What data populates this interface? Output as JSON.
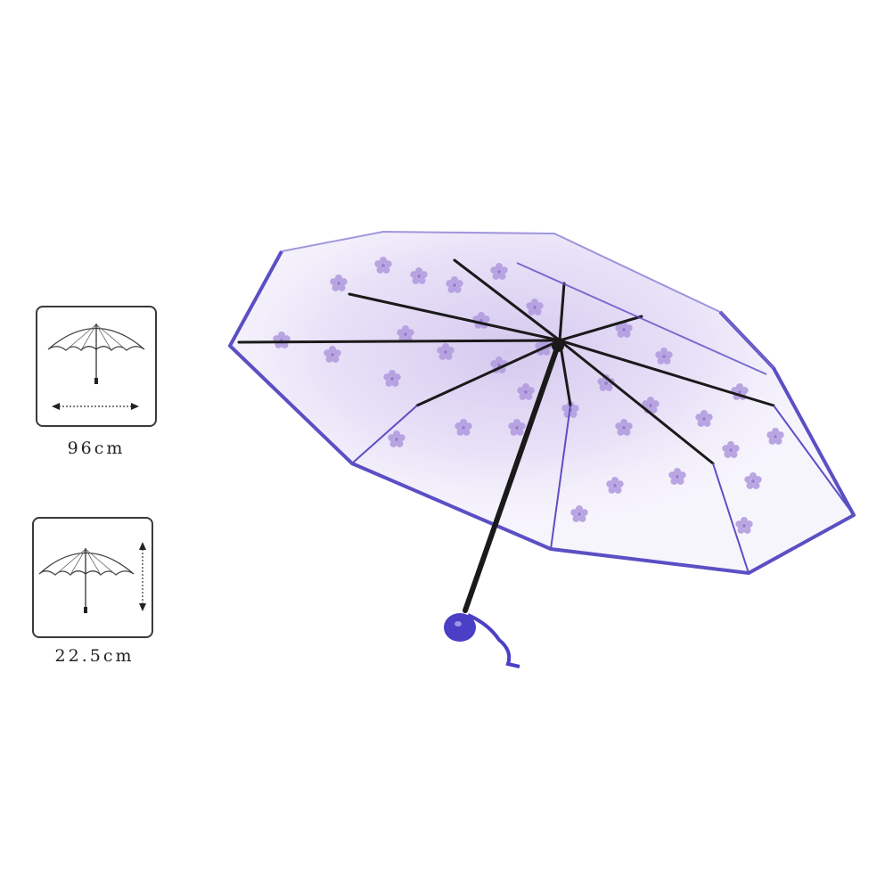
{
  "specs": [
    {
      "icon": "open-umbrella-width-icon",
      "label": "96cm"
    },
    {
      "icon": "open-umbrella-height-icon",
      "label": "22.5cm"
    }
  ],
  "product": {
    "icon": "clear-sakura-umbrella",
    "colors": {
      "trim": "#5b4fc4",
      "blossom": "#b9a3e3",
      "handle": "#4b3fc6",
      "shaft": "#1a1a1a"
    }
  }
}
